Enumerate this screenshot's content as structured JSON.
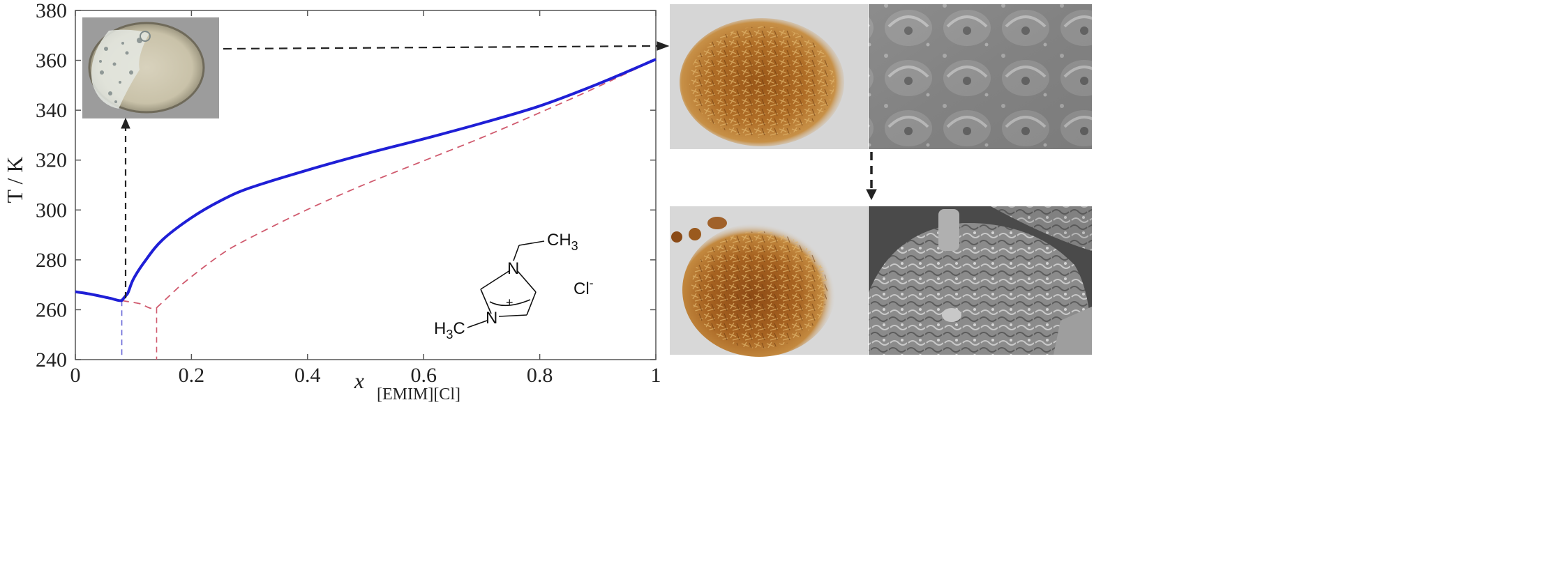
{
  "chart_data": {
    "type": "line",
    "title": "",
    "xlabel": "x",
    "xlabel_subscript": "[EMIM][Cl]",
    "ylabel": "T / K",
    "xlim": [
      0,
      1
    ],
    "ylim": [
      240,
      380
    ],
    "x_ticks": [
      0,
      0.2,
      0.4,
      0.6,
      0.8,
      1
    ],
    "x_tick_labels": [
      "0",
      "0.2",
      "0.4",
      "0.6",
      "0.8",
      "1"
    ],
    "y_ticks": [
      240,
      260,
      280,
      300,
      320,
      340,
      360,
      380
    ],
    "y_tick_labels": [
      "240",
      "260",
      "280",
      "300",
      "320",
      "340",
      "360",
      "380"
    ],
    "grid": false,
    "series": [
      {
        "style": "solid",
        "color": "#1f1fd6",
        "x": [
          0.0,
          0.02,
          0.04,
          0.06,
          0.08,
          0.09,
          0.1,
          0.12,
          0.15,
          0.2,
          0.25,
          0.3,
          0.4,
          0.5,
          0.6,
          0.7,
          0.8,
          0.9,
          1.0
        ],
        "y": [
          267.2,
          266.5,
          265.6,
          264.6,
          263.7,
          266.5,
          272.3,
          279.5,
          288.0,
          296.9,
          303.7,
          308.8,
          316.0,
          322.5,
          328.5,
          334.8,
          341.7,
          350.5,
          360.4
        ]
      },
      {
        "style": "dashed",
        "color": "#d05a6e",
        "x": [
          0.0,
          0.04,
          0.08,
          0.11,
          0.14,
          0.18,
          0.25,
          0.3,
          0.4,
          0.5,
          0.6,
          0.7,
          0.8,
          0.9,
          1.0
        ],
        "y": [
          267.2,
          265.6,
          263.7,
          262.5,
          260.8,
          269.5,
          282.0,
          288.7,
          300.2,
          310.4,
          319.7,
          329.0,
          339.0,
          349.4,
          360.4
        ]
      }
    ],
    "vertical_dashed_lines": [
      {
        "x": 0.08,
        "y_top": 263.7,
        "color": "#6a6ad8"
      },
      {
        "x": 0.14,
        "y_top": 260.8,
        "color": "#d05a6e"
      }
    ],
    "annotations": {
      "chemical_structure": {
        "labels": [
          "CH3",
          "N",
          "N",
          "+",
          "H3C",
          "Cl-"
        ],
        "ch3": "CH",
        "ch3_sub": "3",
        "n_top": "N",
        "n_bottom": "N",
        "plus": "+",
        "h3c_h": "H",
        "h3c_sub": "3",
        "h3c_c": "C",
        "cl": "Cl",
        "cl_sup": "-"
      },
      "arrows": [
        "eutectic point to petri dish photo",
        "pure [EMIM][Cl] to powder photos",
        "top photos to bottom photos"
      ]
    }
  },
  "images": {
    "petri_dish": "petri-dish-photo",
    "top_powder": "powder-photo-before",
    "top_sem": "sem-image-before",
    "bottom_powder": "powder-photo-after",
    "bottom_sem": "sem-image-after"
  },
  "colors": {
    "liquidus": "#1f1fd6",
    "ideal": "#d05a6e",
    "powder": "#a8641e",
    "sem": "#8a8a8a"
  }
}
